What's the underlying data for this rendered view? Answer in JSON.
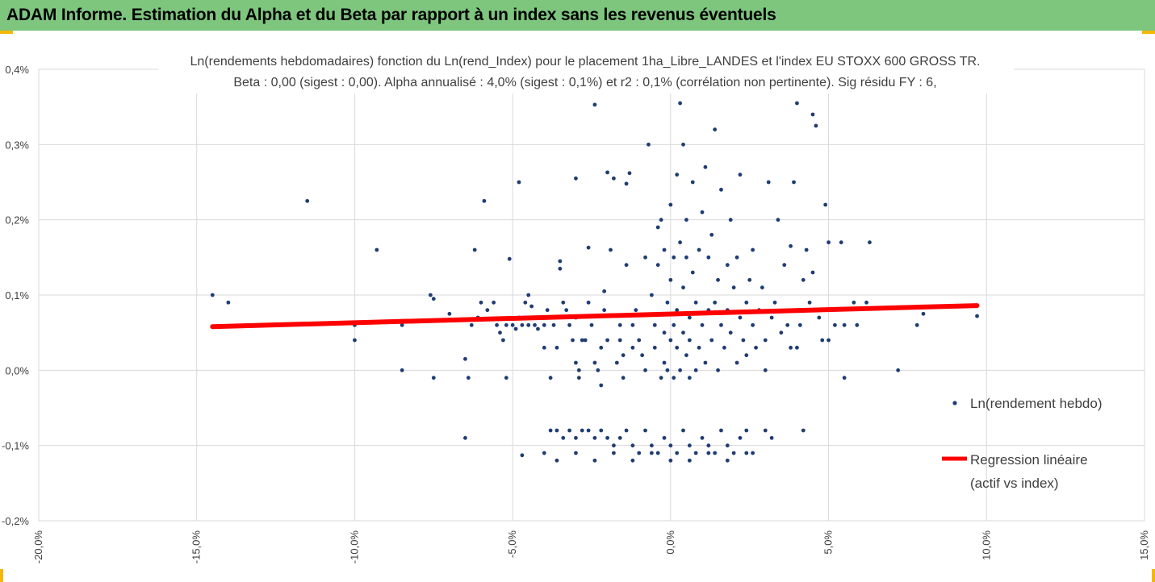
{
  "header": {
    "title": "ADAM Informe. Estimation du Alpha et du Beta par rapport à un index sans les revenus éventuels"
  },
  "colors": {
    "banner": "#7ec57e",
    "accent": "#f5b800",
    "points": "#1f3d73",
    "regression": "#ff0000",
    "grid": "#d9d9d9"
  },
  "chart_data": {
    "type": "scatter",
    "title_line1": "Ln(rendements hebdomadaires) fonction du Ln(rend_Index) pour le placement 1ha_Libre_LANDES et l'index EU STOXX 600 GROSS TR.",
    "title_line2": "Beta : 0,00 (sigest : 0,00). Alpha annualisé : 4,0% (sigest : 0,1%) et r2 : 0,1% (corrélation non pertinente). Sig résidu FY : 6,",
    "xlabel": "",
    "ylabel": "",
    "xlim": [
      -0.2,
      0.15
    ],
    "ylim": [
      -0.002,
      0.004
    ],
    "x_ticks": [
      "-20,0%",
      "-15,0%",
      "-10,0%",
      "-5,0%",
      "0,0%",
      "5,0%",
      "10,0%",
      "15,0%"
    ],
    "y_ticks": [
      "-0,2%",
      "-0,1%",
      "0,0%",
      "0,1%",
      "0,2%",
      "0,3%",
      "0,4%"
    ],
    "grid": true,
    "legend_position": "right",
    "series": [
      {
        "name": "Ln(rendement hebdo)",
        "kind": "points",
        "points": [
          [
            -0.145,
            0.001
          ],
          [
            -0.14,
            0.0009
          ],
          [
            -0.115,
            0.00225
          ],
          [
            -0.1,
            0.0006
          ],
          [
            -0.1,
            0.0004
          ],
          [
            -0.093,
            0.0016
          ],
          [
            -0.085,
            0.0006
          ],
          [
            -0.085,
            0.0
          ],
          [
            -0.076,
            0.001
          ],
          [
            -0.075,
            0.00095
          ],
          [
            -0.075,
            -0.0001
          ],
          [
            -0.07,
            0.00075
          ],
          [
            -0.065,
            -0.0009
          ],
          [
            -0.065,
            0.00015
          ],
          [
            -0.064,
            -0.0001
          ],
          [
            -0.063,
            0.0006
          ],
          [
            -0.062,
            0.0016
          ],
          [
            -0.061,
            0.0007
          ],
          [
            -0.06,
            0.0009
          ],
          [
            -0.059,
            0.00225
          ],
          [
            -0.058,
            0.0008
          ],
          [
            -0.056,
            0.0009
          ],
          [
            -0.055,
            0.0006
          ],
          [
            -0.054,
            0.0005
          ],
          [
            -0.053,
            0.0004
          ],
          [
            -0.052,
            0.0006
          ],
          [
            -0.052,
            -0.0001
          ],
          [
            -0.051,
            0.00148
          ],
          [
            -0.05,
            0.0006
          ],
          [
            -0.049,
            0.00055
          ],
          [
            -0.048,
            0.0007
          ],
          [
            -0.047,
            0.0006
          ],
          [
            -0.046,
            0.0009
          ],
          [
            -0.045,
            0.0006
          ],
          [
            -0.048,
            0.0025
          ],
          [
            -0.047,
            -0.00113
          ],
          [
            -0.045,
            0.001
          ],
          [
            -0.044,
            0.00085
          ],
          [
            -0.043,
            0.0006
          ],
          [
            -0.042,
            0.00055
          ],
          [
            -0.041,
            0.0007
          ],
          [
            -0.04,
            0.0006
          ],
          [
            -0.04,
            0.0003
          ],
          [
            -0.039,
            0.0008
          ],
          [
            -0.038,
            -0.0001
          ],
          [
            -0.037,
            0.0006
          ],
          [
            -0.036,
            0.0003
          ],
          [
            -0.035,
            0.00145
          ],
          [
            -0.035,
            0.00135
          ],
          [
            -0.034,
            0.0009
          ],
          [
            -0.033,
            0.0008
          ],
          [
            -0.032,
            0.0006
          ],
          [
            -0.031,
            0.0004
          ],
          [
            -0.03,
            0.00255
          ],
          [
            -0.03,
            0.0007
          ],
          [
            -0.03,
            0.0001
          ],
          [
            -0.029,
            0.0
          ],
          [
            -0.029,
            -0.0001
          ],
          [
            -0.028,
            0.0004
          ],
          [
            -0.027,
            0.0004
          ],
          [
            -0.026,
            0.00163
          ],
          [
            -0.026,
            0.0009
          ],
          [
            -0.025,
            0.0006
          ],
          [
            -0.024,
            0.00353
          ],
          [
            -0.024,
            0.0001
          ],
          [
            -0.023,
            0.0
          ],
          [
            -0.022,
            0.0003
          ],
          [
            -0.022,
            -0.0002
          ],
          [
            -0.021,
            0.00105
          ],
          [
            -0.021,
            0.0008
          ],
          [
            -0.02,
            0.0004
          ],
          [
            -0.02,
            0.00263
          ],
          [
            -0.019,
            0.0016
          ],
          [
            -0.018,
            0.00255
          ],
          [
            -0.017,
            0.0001
          ],
          [
            -0.016,
            0.0006
          ],
          [
            -0.016,
            0.0004
          ],
          [
            -0.015,
            -0.0001
          ],
          [
            -0.015,
            0.0002
          ],
          [
            -0.014,
            0.0014
          ],
          [
            -0.014,
            0.00248
          ],
          [
            -0.013,
            0.00262
          ],
          [
            -0.012,
            0.0003
          ],
          [
            -0.012,
            0.0006
          ],
          [
            -0.011,
            0.0008
          ],
          [
            -0.01,
            0.0004
          ],
          [
            -0.009,
            0.0002
          ],
          [
            -0.008,
            0.0
          ],
          [
            -0.008,
            0.0015
          ],
          [
            -0.007,
            0.003
          ],
          [
            -0.006,
            0.001
          ],
          [
            -0.005,
            0.0006
          ],
          [
            -0.005,
            0.0003
          ],
          [
            -0.004,
            0.0014
          ],
          [
            -0.004,
            0.0019
          ],
          [
            -0.003,
            0.002
          ],
          [
            -0.003,
            -0.0001
          ],
          [
            -0.002,
            0.0005
          ],
          [
            -0.002,
            0.0001
          ],
          [
            -0.002,
            0.0016
          ],
          [
            -0.001,
            0.0009
          ],
          [
            -0.001,
            0.0
          ],
          [
            0.0,
            0.0012
          ],
          [
            0.0,
            0.0004
          ],
          [
            0.0,
            0.0022
          ],
          [
            0.001,
            0.0006
          ],
          [
            0.001,
            0.0015
          ],
          [
            0.001,
            -0.0001
          ],
          [
            0.002,
            0.0026
          ],
          [
            0.002,
            0.0008
          ],
          [
            0.002,
            0.0003
          ],
          [
            0.003,
            0.00355
          ],
          [
            0.003,
            0.0017
          ],
          [
            0.003,
            0.0
          ],
          [
            0.004,
            0.0011
          ],
          [
            0.004,
            0.0005
          ],
          [
            0.004,
            0.003
          ],
          [
            0.005,
            0.0015
          ],
          [
            0.005,
            0.0002
          ],
          [
            0.005,
            0.002
          ],
          [
            0.006,
            0.0007
          ],
          [
            0.006,
            0.0004
          ],
          [
            0.006,
            -0.0001
          ],
          [
            0.007,
            0.0013
          ],
          [
            0.007,
            0.0025
          ],
          [
            0.008,
            0.0009
          ],
          [
            0.008,
            0.0
          ],
          [
            0.009,
            0.0016
          ],
          [
            0.009,
            0.0003
          ],
          [
            0.01,
            0.0021
          ],
          [
            0.01,
            0.0006
          ],
          [
            0.011,
            0.0027
          ],
          [
            0.011,
            0.0001
          ],
          [
            0.012,
            0.0008
          ],
          [
            0.012,
            0.0015
          ],
          [
            0.013,
            0.0004
          ],
          [
            0.013,
            0.0018
          ],
          [
            0.014,
            0.0032
          ],
          [
            0.014,
            0.0009
          ],
          [
            0.015,
            0.0
          ],
          [
            0.015,
            0.0012
          ],
          [
            0.016,
            0.0006
          ],
          [
            0.016,
            0.0024
          ],
          [
            0.017,
            0.0003
          ],
          [
            0.018,
            0.0014
          ],
          [
            0.018,
            0.0008
          ],
          [
            0.019,
            0.002
          ],
          [
            0.019,
            0.0005
          ],
          [
            0.02,
            0.0011
          ],
          [
            0.021,
            0.0001
          ],
          [
            0.021,
            0.0015
          ],
          [
            0.022,
            0.0007
          ],
          [
            0.022,
            0.0026
          ],
          [
            0.023,
            0.0004
          ],
          [
            0.024,
            0.0009
          ],
          [
            0.024,
            0.0002
          ],
          [
            0.025,
            0.0012
          ],
          [
            0.026,
            0.0006
          ],
          [
            0.026,
            0.0016
          ],
          [
            0.027,
            0.0003
          ],
          [
            0.028,
            0.0008
          ],
          [
            0.029,
            0.0011
          ],
          [
            0.03,
            0.0004
          ],
          [
            0.03,
            0.0
          ],
          [
            0.031,
            0.0025
          ],
          [
            0.032,
            0.0007
          ],
          [
            0.033,
            0.0009
          ],
          [
            0.034,
            0.002
          ],
          [
            0.035,
            0.0005
          ],
          [
            0.036,
            0.0014
          ],
          [
            0.037,
            0.0006
          ],
          [
            0.038,
            0.0003
          ],
          [
            0.038,
            0.00165
          ],
          [
            0.039,
            0.0025
          ],
          [
            0.04,
            0.00355
          ],
          [
            0.04,
            0.0003
          ],
          [
            0.041,
            0.0006
          ],
          [
            0.042,
            0.0012
          ],
          [
            0.043,
            0.0016
          ],
          [
            0.044,
            0.0009
          ],
          [
            0.045,
            0.0034
          ],
          [
            0.045,
            0.0013
          ],
          [
            0.046,
            0.00325
          ],
          [
            0.047,
            0.0007
          ],
          [
            0.048,
            0.0004
          ],
          [
            0.049,
            0.0022
          ],
          [
            0.05,
            0.0004
          ],
          [
            0.05,
            0.0017
          ],
          [
            0.052,
            0.0006
          ],
          [
            0.054,
            0.0017
          ],
          [
            0.055,
            -0.0001
          ],
          [
            0.055,
            0.0006
          ],
          [
            0.058,
            0.0009
          ],
          [
            0.059,
            0.0006
          ],
          [
            0.062,
            0.0009
          ],
          [
            0.063,
            0.0017
          ],
          [
            0.072,
            0.0
          ],
          [
            0.078,
            0.0006
          ],
          [
            0.08,
            0.00075
          ],
          [
            0.097,
            0.00072
          ],
          [
            -0.038,
            -0.0008
          ],
          [
            -0.036,
            -0.0008
          ],
          [
            -0.034,
            -0.0009
          ],
          [
            -0.032,
            -0.0008
          ],
          [
            -0.03,
            -0.0009
          ],
          [
            -0.028,
            -0.0008
          ],
          [
            -0.026,
            -0.0008
          ],
          [
            -0.024,
            -0.0009
          ],
          [
            -0.022,
            -0.0008
          ],
          [
            -0.02,
            -0.0009
          ],
          [
            -0.018,
            -0.001
          ],
          [
            -0.016,
            -0.0009
          ],
          [
            -0.014,
            -0.0008
          ],
          [
            -0.012,
            -0.001
          ],
          [
            -0.01,
            -0.0011
          ],
          [
            -0.008,
            -0.0008
          ],
          [
            -0.006,
            -0.001
          ],
          [
            -0.004,
            -0.0011
          ],
          [
            -0.002,
            -0.0009
          ],
          [
            0.0,
            -0.001
          ],
          [
            0.002,
            -0.0011
          ],
          [
            0.004,
            -0.0008
          ],
          [
            0.006,
            -0.001
          ],
          [
            0.008,
            -0.0011
          ],
          [
            0.01,
            -0.0009
          ],
          [
            0.012,
            -0.001
          ],
          [
            0.014,
            -0.0011
          ],
          [
            0.016,
            -0.0008
          ],
          [
            0.018,
            -0.001
          ],
          [
            0.02,
            -0.0011
          ],
          [
            0.022,
            -0.0009
          ],
          [
            0.024,
            -0.0008
          ],
          [
            0.026,
            -0.0011
          ],
          [
            0.03,
            -0.0008
          ],
          [
            0.032,
            -0.0009
          ],
          [
            0.042,
            -0.0008
          ],
          [
            -0.04,
            -0.0011
          ],
          [
            -0.036,
            -0.0012
          ],
          [
            -0.03,
            -0.0011
          ],
          [
            -0.024,
            -0.0012
          ],
          [
            -0.018,
            -0.0011
          ],
          [
            -0.012,
            -0.0012
          ],
          [
            -0.006,
            -0.0011
          ],
          [
            0.0,
            -0.0012
          ],
          [
            0.006,
            -0.0012
          ],
          [
            0.012,
            -0.0011
          ],
          [
            0.018,
            -0.0012
          ],
          [
            0.024,
            -0.0011
          ]
        ]
      },
      {
        "name": "Regression linéaire (actif vs index)",
        "kind": "line",
        "x": [
          -0.145,
          0.097
        ],
        "y": [
          0.00058,
          0.00086
        ]
      }
    ]
  },
  "legend": {
    "items": [
      {
        "label": "Ln(rendement hebdo)"
      },
      {
        "label": "Regression linéaire",
        "label2": "(actif vs index)"
      }
    ]
  }
}
